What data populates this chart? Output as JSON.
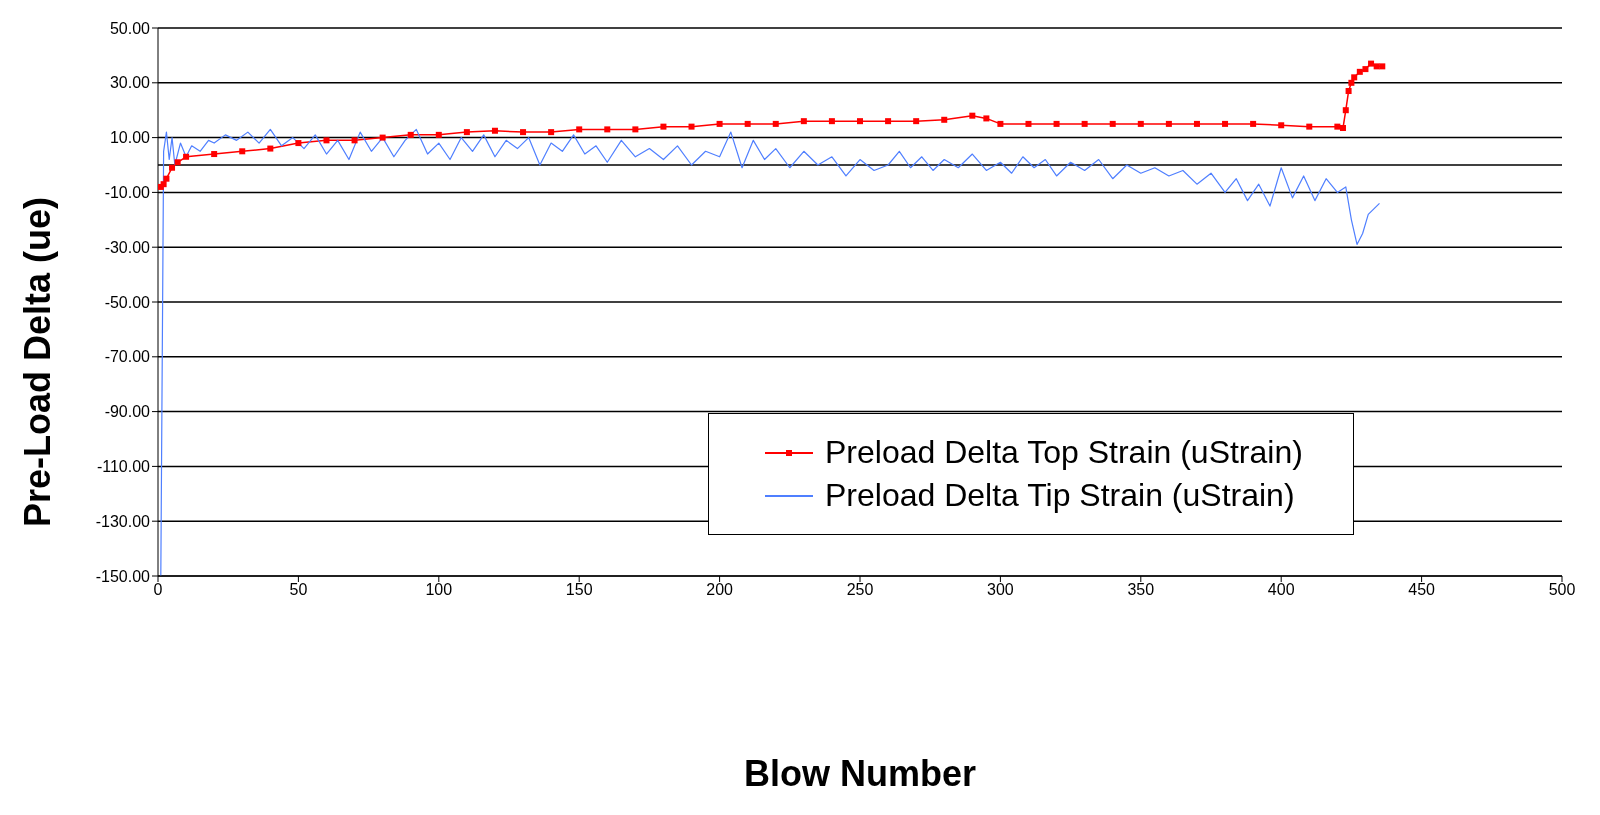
{
  "chart_data": {
    "type": "line",
    "xlabel": "Blow Number",
    "ylabel": "Pre-Load Delta (ue)",
    "xlim": [
      0,
      500
    ],
    "xticks": [
      0,
      50,
      100,
      150,
      200,
      250,
      300,
      350,
      400,
      450,
      500
    ],
    "ylim": [
      -150,
      50
    ],
    "yticks": [
      {
        "value": -150,
        "label": "-150.00"
      },
      {
        "value": -130,
        "label": "-130.00"
      },
      {
        "value": -110,
        "label": "-110.00"
      },
      {
        "value": -90,
        "label": "-90.00"
      },
      {
        "value": -70,
        "label": "-70.00"
      },
      {
        "value": -50,
        "label": "-50.00"
      },
      {
        "value": -30,
        "label": "-30.00"
      },
      {
        "value": -10,
        "label": "-10.00"
      },
      {
        "value": 10,
        "label": "10.00"
      },
      {
        "value": 30,
        "label": "30.00"
      },
      {
        "value": 50,
        "label": "50.00"
      }
    ],
    "grid": "y",
    "legend": "right",
    "ref_lines": [
      {
        "axis": "y",
        "value": 0,
        "color": "#000000"
      }
    ],
    "series": [
      {
        "name": "Preload Delta Top Strain (uStrain)",
        "color": "#ff0000",
        "marker": "square",
        "x": [
          1,
          2,
          3,
          5,
          7,
          10,
          20,
          30,
          40,
          50,
          60,
          70,
          80,
          90,
          100,
          110,
          120,
          130,
          140,
          150,
          160,
          170,
          180,
          190,
          200,
          210,
          220,
          230,
          240,
          250,
          260,
          270,
          280,
          290,
          295,
          300,
          310,
          320,
          330,
          340,
          350,
          360,
          370,
          380,
          390,
          400,
          410,
          420,
          422,
          423,
          424,
          425,
          426,
          428,
          430,
          432,
          434,
          436
        ],
        "values": [
          -8,
          -7,
          -5,
          -1,
          1,
          3,
          4,
          5,
          6,
          8,
          9,
          9,
          10,
          11,
          11,
          12,
          12.5,
          12,
          12,
          13,
          13,
          13,
          14,
          14,
          15,
          15,
          15,
          16,
          16,
          16,
          16,
          16,
          16.5,
          18,
          17,
          15,
          15,
          15,
          15,
          15,
          15,
          15,
          15,
          15,
          15,
          14.5,
          14,
          14,
          13.5,
          20,
          27,
          30,
          32,
          34,
          35,
          37,
          36,
          36
        ]
      },
      {
        "name": "Preload Delta Tip Strain (uStrain)",
        "color": "#4f7fff",
        "marker": "none",
        "x": [
          1,
          2,
          3,
          4,
          5,
          6,
          8,
          10,
          12,
          15,
          18,
          20,
          24,
          28,
          32,
          36,
          40,
          44,
          48,
          52,
          56,
          60,
          64,
          68,
          72,
          76,
          80,
          84,
          88,
          92,
          96,
          100,
          104,
          108,
          112,
          116,
          120,
          124,
          128,
          132,
          136,
          140,
          144,
          148,
          152,
          156,
          160,
          165,
          170,
          175,
          180,
          185,
          190,
          195,
          200,
          204,
          208,
          212,
          216,
          220,
          225,
          230,
          235,
          240,
          245,
          250,
          255,
          260,
          264,
          268,
          272,
          276,
          280,
          285,
          290,
          295,
          300,
          304,
          308,
          312,
          316,
          320,
          325,
          330,
          335,
          340,
          345,
          350,
          355,
          360,
          365,
          370,
          375,
          380,
          384,
          388,
          392,
          396,
          400,
          404,
          408,
          412,
          416,
          420,
          423,
          425,
          427,
          429,
          431,
          433,
          435
        ],
        "values": [
          -150,
          5,
          12,
          2,
          10,
          0,
          8,
          3,
          7,
          5,
          9,
          8,
          11,
          9,
          12,
          8,
          13,
          7,
          10,
          6,
          11,
          4,
          9,
          2,
          12,
          5,
          10,
          3,
          9,
          13,
          4,
          8,
          2,
          10,
          5,
          11,
          3,
          9,
          6,
          10,
          0,
          8,
          5,
          11,
          4,
          7,
          1,
          9,
          3,
          6,
          2,
          7,
          0,
          5,
          3,
          12,
          -1,
          9,
          2,
          6,
          -1,
          5,
          0,
          3,
          -4,
          2,
          -2,
          0,
          5,
          -1,
          3,
          -2,
          2,
          -1,
          4,
          -2,
          1,
          -3,
          3,
          -1,
          2,
          -4,
          1,
          -2,
          2,
          -5,
          0,
          -3,
          -1,
          -4,
          -2,
          -7,
          -3,
          -10,
          -5,
          -13,
          -7,
          -15,
          -1,
          -12,
          -4,
          -13,
          -5,
          -10,
          -8,
          -20,
          -29,
          -25,
          -18,
          -16,
          -14
        ]
      }
    ]
  }
}
